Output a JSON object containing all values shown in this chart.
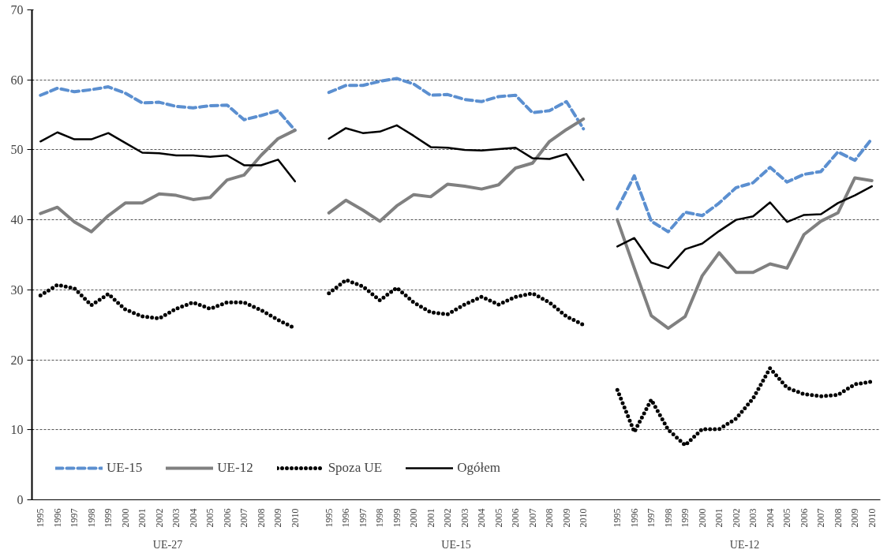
{
  "chart_data": {
    "type": "line",
    "categories": [
      "1995",
      "1996",
      "1997",
      "1998",
      "1999",
      "2000",
      "2001",
      "2002",
      "2003",
      "2004",
      "2005",
      "2006",
      "2007",
      "2008",
      "2009",
      "2010",
      null,
      "1995",
      "1996",
      "1997",
      "1998",
      "1999",
      "2000",
      "2001",
      "2002",
      "2003",
      "2004",
      "2005",
      "2006",
      "2007",
      "2008",
      "2009",
      "2010",
      null,
      "1995",
      "1996",
      "1997",
      "1998",
      "1999",
      "2000",
      "2001",
      "2002",
      "2003",
      "2004",
      "2005",
      "2006",
      "2007",
      "2008",
      "2009",
      "2010"
    ],
    "annotations": [
      "UE-27",
      "UE-15",
      "UE-12"
    ],
    "series": [
      {
        "name": "UE-15",
        "color": "#5b8fd0",
        "line_style": "dashed",
        "values": [
          57.8,
          58.8,
          58.3,
          58.6,
          59.0,
          58.1,
          56.7,
          56.8,
          56.2,
          56.0,
          56.3,
          56.4,
          54.3,
          54.9,
          55.6,
          52.8,
          null,
          58.2,
          59.2,
          59.2,
          59.8,
          60.2,
          59.4,
          57.8,
          57.9,
          57.2,
          56.9,
          57.6,
          57.8,
          55.3,
          55.6,
          56.9,
          53.0,
          null,
          41.6,
          46.3,
          39.8,
          38.3,
          41.1,
          40.6,
          42.4,
          44.6,
          45.3,
          47.5,
          45.4,
          46.5,
          46.9,
          49.7,
          48.5,
          51.6
        ]
      },
      {
        "name": "UE-12",
        "color": "#808080",
        "line_style": "solid",
        "values": [
          40.9,
          41.8,
          39.7,
          38.3,
          40.6,
          42.4,
          42.4,
          43.7,
          43.5,
          42.9,
          43.2,
          45.7,
          46.4,
          49.2,
          51.6,
          52.8,
          null,
          41.0,
          42.8,
          41.4,
          39.8,
          42.0,
          43.6,
          43.3,
          45.1,
          44.8,
          44.4,
          45.0,
          47.4,
          48.1,
          51.2,
          52.9,
          54.4,
          null,
          40.0,
          33.1,
          26.3,
          24.5,
          26.2,
          32.0,
          35.3,
          32.5,
          32.5,
          33.7,
          33.1,
          37.9,
          39.8,
          41.0,
          46.0,
          45.6
        ]
      },
      {
        "name": "Spoza UE",
        "color": "#000000",
        "line_style": "dotted",
        "values": [
          29.2,
          30.7,
          30.2,
          27.8,
          29.4,
          27.2,
          26.2,
          25.9,
          27.3,
          28.2,
          27.3,
          28.2,
          28.2,
          27.1,
          25.7,
          24.5,
          null,
          29.5,
          31.4,
          30.5,
          28.5,
          30.3,
          28.2,
          26.8,
          26.5,
          27.9,
          29.0,
          27.9,
          29.0,
          29.5,
          28.2,
          26.2,
          25.0,
          null,
          15.7,
          9.7,
          14.3,
          10.0,
          7.8,
          10.1,
          10.1,
          11.6,
          14.5,
          18.8,
          16.0,
          15.1,
          14.8,
          15.0,
          16.5,
          16.9
        ]
      },
      {
        "name": "Ogółem",
        "color": "#000000",
        "line_style": "solid",
        "values": [
          51.2,
          52.5,
          51.5,
          51.5,
          52.4,
          51.0,
          49.6,
          49.5,
          49.2,
          49.2,
          49.0,
          49.2,
          47.8,
          47.8,
          48.6,
          45.5,
          null,
          51.6,
          53.1,
          52.4,
          52.6,
          53.5,
          52.0,
          50.4,
          50.3,
          50.0,
          49.9,
          50.1,
          50.3,
          48.8,
          48.7,
          49.4,
          45.7,
          null,
          36.2,
          37.4,
          33.9,
          33.1,
          35.8,
          36.6,
          38.4,
          40.0,
          40.5,
          42.5,
          39.7,
          40.7,
          40.8,
          42.4,
          43.5,
          44.8
        ]
      }
    ],
    "ylim": [
      0,
      70
    ],
    "yticks": [
      0,
      10,
      20,
      30,
      40,
      50,
      60,
      70
    ],
    "grid": "y",
    "legend": "bottom left"
  }
}
